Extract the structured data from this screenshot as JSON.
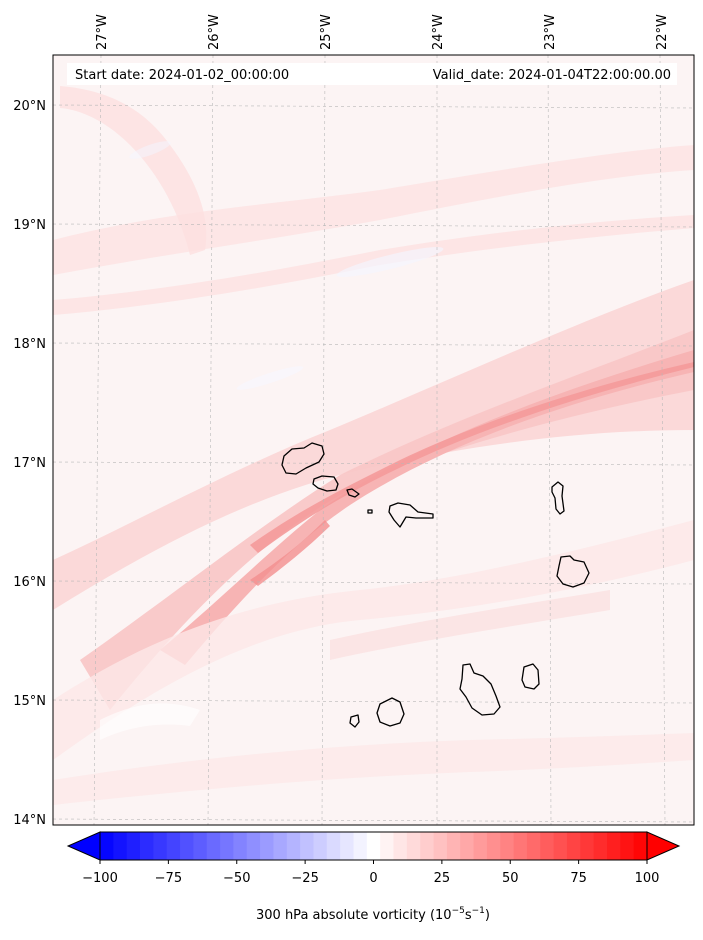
{
  "map": {
    "top_longitude_labels": [
      "27°W",
      "26°W",
      "25°W",
      "24°W",
      "23°W",
      "22°W"
    ],
    "left_latitude_labels": [
      "20°N",
      "19°N",
      "18°N",
      "17°N",
      "16°N",
      "15°N",
      "14°N"
    ],
    "start_date_text": "Start date: 2024-01-02_00:00:00",
    "valid_date_text": "Valid_date: 2024-01-04T22:00:00.00",
    "islands": [
      "santo-antao",
      "sao-vicente",
      "santa-luzia",
      "branco",
      "sao-nicolau",
      "sal",
      "boa-vista",
      "maio",
      "santiago",
      "fogo",
      "brava"
    ]
  },
  "colorbar": {
    "ticks": [
      "−100",
      "−75",
      "−50",
      "−25",
      "0",
      "25",
      "50",
      "75",
      "100"
    ],
    "tick_values": [
      -100,
      -75,
      -50,
      -25,
      0,
      25,
      50,
      75,
      100
    ],
    "range": [
      -100,
      100
    ],
    "levels": 41,
    "label_prefix": "300 hPa absolute vorticity (10",
    "label_exp1": "−5",
    "label_mid": "s",
    "label_exp2": "−1",
    "label_suffix": ")"
  },
  "colors": {
    "negative_max": "#0000ff",
    "neutral": "#ffffff",
    "positive_max": "#ff0000",
    "coastline": "#000000",
    "grid": "#b8b8b8"
  }
}
